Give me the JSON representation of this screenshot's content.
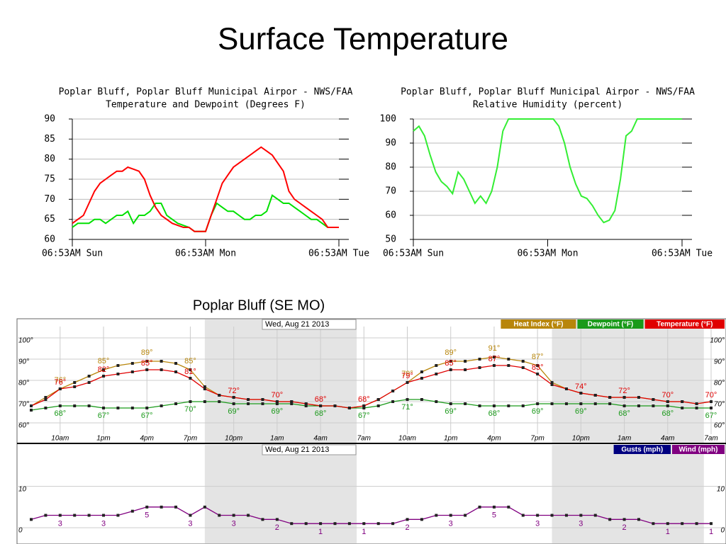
{
  "title": "Surface Temperature",
  "chart_data": [
    {
      "type": "line",
      "title": "Poplar Bluff, Poplar Bluff Municipal Airpor - NWS/FAA",
      "subtitle": "Temperature and Dewpoint (Degrees F)",
      "x": [
        0,
        1,
        2,
        3,
        4,
        5,
        6,
        7,
        8,
        9,
        10,
        11,
        12,
        13,
        14,
        15,
        16,
        17,
        18,
        19,
        20,
        21,
        22,
        23,
        24,
        25,
        26,
        27,
        28,
        29,
        30,
        31,
        32,
        33,
        34,
        35,
        36,
        37,
        38,
        39,
        40,
        41,
        42,
        43,
        44,
        45,
        46,
        47,
        48
      ],
      "xlim": [
        0,
        48
      ],
      "xticks": [
        {
          "value": 0,
          "label": "06:53AM Sun"
        },
        {
          "value": 24,
          "label": "06:53AM Mon"
        },
        {
          "value": 48,
          "label": "06:53AM Tue"
        }
      ],
      "ylim": [
        60,
        90
      ],
      "yticks": [
        60,
        65,
        70,
        75,
        80,
        85,
        90
      ],
      "grid": true,
      "series": [
        {
          "color": "#00e000",
          "values": [
            63,
            64,
            64,
            64,
            65,
            65,
            64,
            65,
            66,
            66,
            67,
            64,
            66,
            66,
            67,
            69,
            69,
            66,
            65,
            64,
            63.5,
            63,
            62,
            62,
            62,
            66,
            69,
            68,
            67,
            67,
            66,
            65,
            65,
            66,
            66,
            67,
            71,
            70,
            69,
            69,
            68,
            67,
            66,
            65,
            65,
            64,
            63,
            63,
            63
          ]
        },
        {
          "color": "#ff0000",
          "values": [
            64,
            65,
            66,
            69,
            72,
            74,
            75,
            76,
            77,
            77,
            78,
            77.5,
            77,
            75,
            71,
            68,
            66,
            65,
            64,
            63.5,
            63,
            63,
            62,
            62,
            62,
            66,
            70,
            74,
            76,
            78,
            79,
            80,
            81,
            82,
            83,
            82,
            81,
            79,
            77,
            72,
            70,
            69,
            68,
            67,
            66,
            65,
            63,
            63,
            63
          ]
        }
      ]
    },
    {
      "type": "line",
      "title": "Poplar Bluff, Poplar Bluff Municipal Airpor - NWS/FAA",
      "subtitle": "Relative Humidity (percent)",
      "x": [
        0,
        1,
        2,
        3,
        4,
        5,
        6,
        7,
        8,
        9,
        10,
        11,
        12,
        13,
        14,
        15,
        16,
        17,
        18,
        19,
        20,
        21,
        22,
        23,
        24,
        25,
        26,
        27,
        28,
        29,
        30,
        31,
        32,
        33,
        34,
        35,
        36,
        37,
        38,
        39,
        40,
        41,
        42,
        43,
        44,
        45,
        46,
        47,
        48
      ],
      "xlim": [
        0,
        48
      ],
      "xticks": [
        {
          "value": 0,
          "label": "06:53AM Sun"
        },
        {
          "value": 24,
          "label": "06:53AM Mon"
        },
        {
          "value": 48,
          "label": "06:53AM Tue"
        }
      ],
      "ylim": [
        50,
        100
      ],
      "yticks": [
        50,
        60,
        70,
        80,
        90,
        100
      ],
      "grid": true,
      "series": [
        {
          "color": "#33ee33",
          "values": [
            95,
            97,
            93,
            85,
            78,
            74,
            72,
            69,
            78,
            75,
            70,
            65,
            68,
            65,
            70,
            80,
            95,
            100,
            100,
            100,
            100,
            100,
            100,
            100,
            100,
            100,
            97,
            90,
            80,
            73,
            68,
            67,
            64,
            60,
            57,
            58,
            62,
            75,
            93,
            95,
            100,
            100,
            100,
            100,
            100,
            100,
            100,
            100,
            100
          ]
        }
      ]
    },
    {
      "type": "line",
      "subtitle": "Poplar Bluff (SE MO)",
      "date_label": "Wed, Aug 21 2013",
      "markers": true,
      "x": [
        0,
        1,
        2,
        3,
        4,
        5,
        6,
        7,
        8,
        9,
        10,
        11,
        12,
        13,
        14,
        15,
        16,
        17,
        18,
        19,
        20,
        21,
        22,
        23,
        24,
        25,
        26,
        27,
        28,
        29,
        30,
        31,
        32,
        33,
        34,
        35,
        36,
        37,
        38,
        39,
        40,
        41,
        42,
        43,
        44,
        45,
        46,
        47
      ],
      "xlim": [
        0,
        47
      ],
      "xticks": [
        {
          "value": 2,
          "label": "10am"
        },
        {
          "value": 5,
          "label": "1pm"
        },
        {
          "value": 8,
          "label": "4pm"
        },
        {
          "value": 11,
          "label": "7pm"
        },
        {
          "value": 14,
          "label": "10pm"
        },
        {
          "value": 17,
          "label": "1am"
        },
        {
          "value": 20,
          "label": "4am"
        },
        {
          "value": 23,
          "label": "7am"
        },
        {
          "value": 26,
          "label": "10am"
        },
        {
          "value": 29,
          "label": "1pm"
        },
        {
          "value": 32,
          "label": "4pm"
        },
        {
          "value": 35,
          "label": "7pm"
        },
        {
          "value": 38,
          "label": "10pm"
        },
        {
          "value": 41,
          "label": "1am"
        },
        {
          "value": 44,
          "label": "4am"
        },
        {
          "value": 47,
          "label": "7am"
        }
      ],
      "ylim": [
        55,
        105
      ],
      "yticks": [
        {
          "value": 60,
          "label": "60°"
        },
        {
          "value": 70,
          "label": "70°"
        },
        {
          "value": 80,
          "label": "80°"
        },
        {
          "value": 90,
          "label": "90°"
        },
        {
          "value": 100,
          "label": "100°"
        }
      ],
      "grid": true,
      "shaded": [
        [
          12,
          22.5
        ],
        [
          36,
          46.5
        ]
      ],
      "series": [
        {
          "name": "Heat Index (°F)",
          "color": "#b8860b",
          "values": [
            68,
            72,
            76,
            79,
            82,
            85,
            87,
            88,
            89,
            89,
            88,
            85,
            77,
            73,
            72,
            71,
            71,
            70,
            70,
            69,
            68,
            68,
            67,
            68,
            71,
            75,
            79,
            84,
            87,
            89,
            89,
            90,
            91,
            90,
            89,
            87,
            79,
            76,
            74,
            73,
            72,
            72,
            72,
            71,
            70,
            70,
            69,
            70
          ],
          "value_labels": [
            null,
            null,
            "76°",
            null,
            null,
            "85°",
            null,
            null,
            "89°",
            null,
            null,
            "85°",
            null,
            null,
            null,
            null,
            null,
            null,
            null,
            null,
            null,
            null,
            null,
            null,
            null,
            null,
            "79°",
            null,
            null,
            "89°",
            null,
            null,
            "91°",
            null,
            null,
            "87°",
            null,
            null,
            null,
            null,
            null,
            null,
            null,
            null,
            null,
            null,
            null,
            null
          ]
        },
        {
          "name": "Dewpoint (°F)",
          "color": "#1a9a1a",
          "values": [
            66,
            67,
            68,
            68,
            68,
            67,
            67,
            67,
            67,
            68,
            69,
            70,
            70,
            70,
            69,
            69,
            69,
            69,
            69,
            68,
            68,
            68,
            67,
            67,
            68,
            70,
            71,
            71,
            70,
            69,
            69,
            68,
            68,
            68,
            68,
            69,
            69,
            69,
            69,
            69,
            69,
            68,
            68,
            68,
            68,
            67,
            67,
            67
          ],
          "value_labels": [
            null,
            null,
            "68°",
            null,
            null,
            "67°",
            null,
            null,
            "67°",
            null,
            null,
            "70°",
            null,
            null,
            "69°",
            null,
            null,
            "69°",
            null,
            null,
            "68°",
            null,
            null,
            "67°",
            null,
            null,
            "71°",
            null,
            null,
            "69°",
            null,
            null,
            "68°",
            null,
            null,
            "69°",
            null,
            null,
            "69°",
            null,
            null,
            "68°",
            null,
            null,
            "68°",
            null,
            null,
            "67°"
          ]
        },
        {
          "name": "Temperature (°F)",
          "color": "#e00000",
          "values": [
            68,
            71,
            76,
            77,
            79,
            82,
            83,
            84,
            85,
            85,
            84,
            81,
            76,
            73,
            72,
            71,
            71,
            70,
            70,
            69,
            68,
            68,
            67,
            68,
            71,
            75,
            79,
            81,
            83,
            85,
            85,
            86,
            87,
            87,
            86,
            83,
            78,
            76,
            74,
            73,
            72,
            72,
            72,
            71,
            70,
            70,
            69,
            70
          ],
          "value_labels": [
            null,
            null,
            "76°",
            null,
            null,
            "82°",
            null,
            null,
            "85°",
            null,
            null,
            "81°",
            null,
            null,
            "72°",
            null,
            null,
            "70°",
            null,
            null,
            "68°",
            null,
            null,
            "68°",
            null,
            null,
            "79°",
            null,
            null,
            "85°",
            null,
            null,
            "87°",
            null,
            null,
            "83°",
            null,
            null,
            "74°",
            null,
            null,
            "72°",
            null,
            null,
            "70°",
            null,
            null,
            "70°"
          ]
        }
      ]
    },
    {
      "type": "line",
      "date_label": "Wed, Aug 21 2013",
      "markers": true,
      "x": [
        0,
        1,
        2,
        3,
        4,
        5,
        6,
        7,
        8,
        9,
        10,
        11,
        12,
        13,
        14,
        15,
        16,
        17,
        18,
        19,
        20,
        21,
        22,
        23,
        24,
        25,
        26,
        27,
        28,
        29,
        30,
        31,
        32,
        33,
        34,
        35,
        36,
        37,
        38,
        39,
        40,
        41,
        42,
        43,
        44,
        45,
        46,
        47
      ],
      "xlim": [
        0,
        47
      ],
      "ylim": [
        0,
        18
      ],
      "yticks": [
        0,
        10
      ],
      "grid": true,
      "shaded": [
        [
          12,
          22.5
        ],
        [
          36,
          46.5
        ]
      ],
      "series": [
        {
          "name": "Gusts (mph)",
          "color": "#000080"
        },
        {
          "name": "Wind (mph)",
          "color": "#800080",
          "values": [
            2,
            3,
            3,
            3,
            3,
            3,
            3,
            4,
            5,
            5,
            5,
            3,
            5,
            3,
            3,
            3,
            2,
            2,
            1,
            1,
            1,
            1,
            1,
            1,
            1,
            1,
            2,
            2,
            3,
            3,
            3,
            5,
            5,
            5,
            3,
            3,
            3,
            3,
            3,
            3,
            2,
            2,
            2,
            1,
            1,
            1,
            1,
            1
          ],
          "value_labels": [
            null,
            null,
            "3",
            null,
            null,
            "3",
            null,
            null,
            "5",
            null,
            null,
            "3",
            null,
            null,
            "3",
            null,
            null,
            "2",
            null,
            null,
            "1",
            null,
            null,
            "1",
            null,
            null,
            "2",
            null,
            null,
            "3",
            null,
            null,
            "5",
            null,
            null,
            "3",
            null,
            null,
            "3",
            null,
            null,
            "2",
            null,
            null,
            "1",
            null,
            null,
            "1"
          ]
        }
      ]
    }
  ]
}
